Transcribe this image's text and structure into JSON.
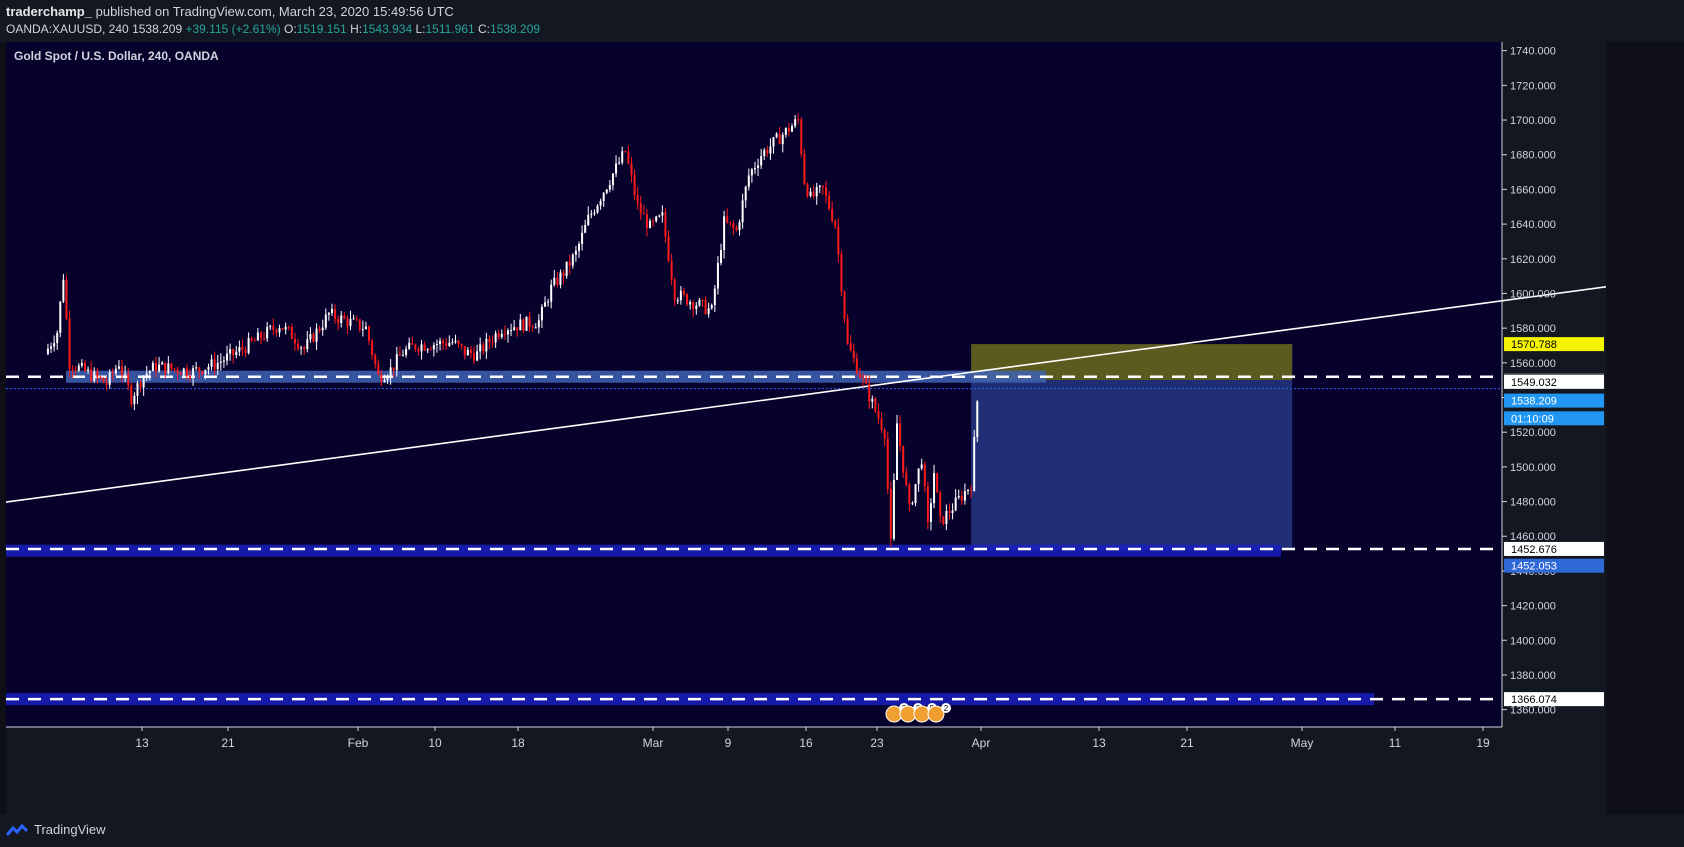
{
  "header": {
    "author": "traderchamp_",
    "published": "published on TradingView.com, March 23, 2020 15:49:56 UTC",
    "symbol": "OANDA:XAUUSD, 240",
    "last": "1538.209",
    "change": "+39.115 (+2.61%)",
    "o_label": "O:",
    "o": "1519.151",
    "h_label": "H:",
    "h": "1543.934",
    "l_label": "L:",
    "l": "1511.961",
    "c_label": "C:",
    "c": "1538.209"
  },
  "footer": {
    "brand": "TradingView"
  },
  "chart_data": {
    "type": "candlestick",
    "title": "Gold Spot / U.S. Dollar, 240, OANDA",
    "ylim": [
      1350,
      1745
    ],
    "y_ticks": [
      1360,
      1380,
      1400,
      1420,
      1440,
      1460,
      1480,
      1500,
      1520,
      1540,
      1560,
      1580,
      1600,
      1620,
      1640,
      1660,
      1680,
      1700,
      1720,
      1740
    ],
    "y_tick_labels": [
      "1360.000",
      "1380.000",
      "1400.000",
      "1420.000",
      "1440.000",
      "1460.000",
      "1480.000",
      "1500.000",
      "1520.000",
      "1540.000",
      "1560.000",
      "1580.000",
      "1600.000",
      "1620.000",
      "1640.000",
      "1660.000",
      "1680.000",
      "1700.000",
      "1720.000",
      "1740.000"
    ],
    "x_ticks": [
      "13",
      "21",
      "Feb",
      "10",
      "18",
      "Mar",
      "9",
      "16",
      "23",
      "Apr",
      "13",
      "21",
      "May",
      "11",
      "19"
    ],
    "price_path": [
      [
        "Jan 8",
        1565
      ],
      [
        "Jan 9",
        1578
      ],
      [
        "Jan 9b",
        1610
      ],
      [
        "Jan 10",
        1560
      ],
      [
        "Jan 13",
        1548
      ],
      [
        "Jan 14",
        1560
      ],
      [
        "Jan 15",
        1540
      ],
      [
        "Jan 16",
        1553
      ],
      [
        "Jan 17",
        1558
      ],
      [
        "Jan 20",
        1555
      ],
      [
        "Jan 22",
        1560
      ],
      [
        "Jan 24",
        1568
      ],
      [
        "Jan 27",
        1582
      ],
      [
        "Jan 28",
        1576
      ],
      [
        "Jan 29",
        1568
      ],
      [
        "Jan 30",
        1578
      ],
      [
        "Jan 31",
        1588
      ],
      [
        "Feb 3",
        1580
      ],
      [
        "Feb 4",
        1552
      ],
      [
        "Feb 5",
        1556
      ],
      [
        "Feb 6",
        1566
      ],
      [
        "Feb 7",
        1570
      ],
      [
        "Feb 10",
        1572
      ],
      [
        "Feb 11",
        1566
      ],
      [
        "Feb 12",
        1565
      ],
      [
        "Feb 14",
        1580
      ],
      [
        "Feb 17",
        1584
      ],
      [
        "Feb 18",
        1603
      ],
      [
        "Feb 19",
        1612
      ],
      [
        "Feb 20",
        1623
      ],
      [
        "Feb 21",
        1643
      ],
      [
        "Feb 24",
        1682
      ],
      [
        "Feb 25",
        1650
      ],
      [
        "Feb 26",
        1638
      ],
      [
        "Feb 27",
        1644
      ],
      [
        "Feb 28",
        1600
      ],
      [
        "Mar 2",
        1590
      ],
      [
        "Mar 3",
        1641
      ],
      [
        "Mar 4",
        1636
      ],
      [
        "Mar 5",
        1668
      ],
      [
        "Mar 6",
        1680
      ],
      [
        "Mar 9",
        1700
      ],
      [
        "Mar 9b",
        1665
      ],
      [
        "Mar 10",
        1655
      ],
      [
        "Mar 11",
        1660
      ],
      [
        "Mar 12",
        1640
      ],
      [
        "Mar 13",
        1570
      ],
      [
        "Mar 16",
        1520
      ],
      [
        "Mar 16b",
        1455
      ],
      [
        "Mar 17",
        1525
      ],
      [
        "Mar 18",
        1475
      ],
      [
        "Mar 19",
        1505
      ],
      [
        "Mar 19b",
        1465
      ],
      [
        "Mar 20",
        1497
      ],
      [
        "Mar 20b",
        1468
      ],
      [
        "Mar 23",
        1490
      ],
      [
        "Mar 23b",
        1538
      ]
    ],
    "levels": [
      {
        "value": 1552.0,
        "style": "white-dashed"
      },
      {
        "value": 1452.676,
        "style": "white-dashed"
      },
      {
        "value": 1366.074,
        "style": "white-dashed"
      }
    ],
    "price_labels": [
      {
        "label": "1570.788",
        "value": 1570.788,
        "color": "#f5f500"
      },
      {
        "label": "1550.068",
        "value": 1550.068,
        "color": "#4c4c4c"
      },
      {
        "label": "1549.032",
        "value": 1549.032,
        "color": "#ffffff"
      },
      {
        "label": "1538.209",
        "value": 1538.209,
        "color": "#2196f3"
      },
      {
        "label": "01:10:09",
        "value": 1528.0,
        "color": "#2196f3"
      },
      {
        "label": "1452.676",
        "value": 1452.676,
        "color": "#ffffff"
      },
      {
        "label": "1452.053",
        "value": 1443.0,
        "color": "#2e69d6"
      },
      {
        "label": "1366.074",
        "value": 1366.074,
        "color": "#ffffff"
      }
    ],
    "trendline": {
      "from": [
        "Jan 1",
        1476
      ],
      "to": [
        "May 23",
        1613
      ]
    },
    "position": {
      "entry": 1550.068,
      "target": 1452.053,
      "stop": 1570.788,
      "from": "Mar 23",
      "to": "Apr 18"
    },
    "event_badges": [
      "2",
      "2",
      "5",
      "2"
    ]
  }
}
